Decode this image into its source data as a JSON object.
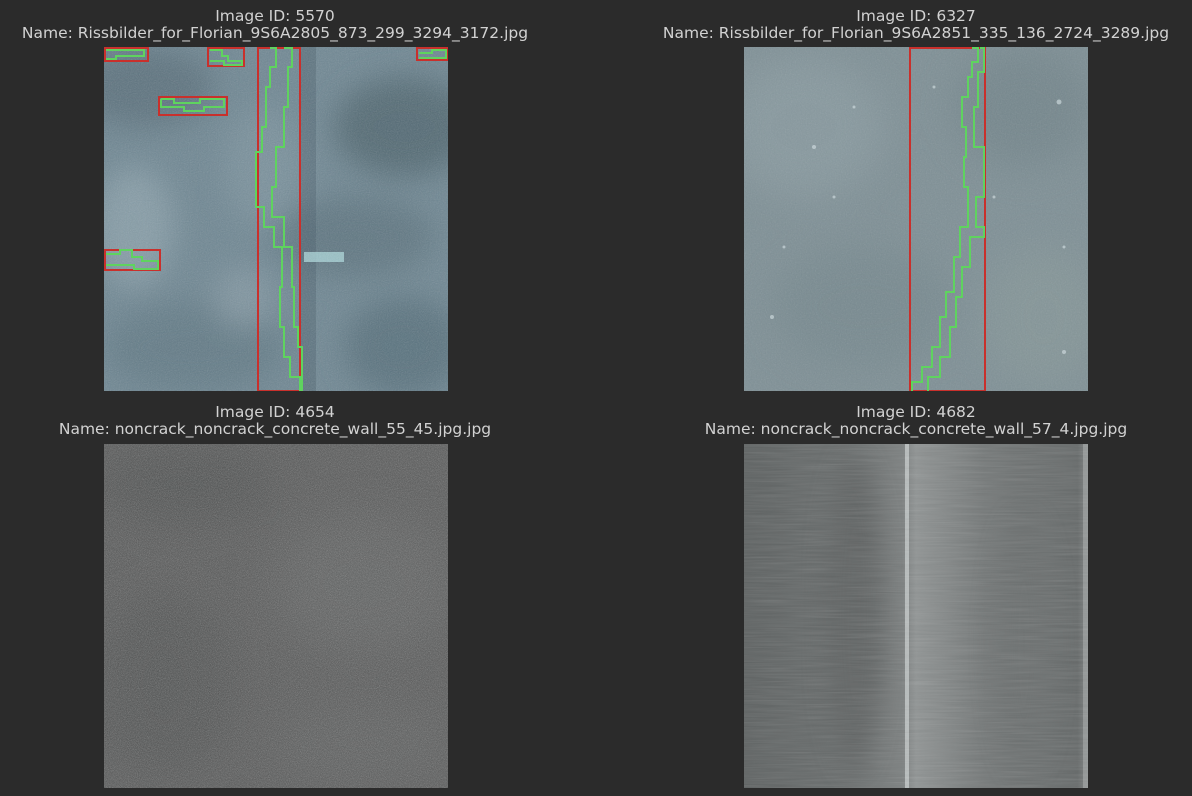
{
  "figure": {
    "panels": [
      {
        "id_line": "Image ID: 5570",
        "name_line": "Name: Rissbilder_for_Florian_9S6A2805_873_299_3294_3172.jpg",
        "subject": "blue-grey concrete with vertical crack",
        "annotated": true
      },
      {
        "id_line": "Image ID: 6327",
        "name_line": "Name: Rissbilder_for_Florian_9S6A2851_335_136_2724_3289.jpg",
        "subject": "grey concrete with vertical crack",
        "annotated": true
      },
      {
        "id_line": "Image ID: 4654",
        "name_line": "Name: noncrack_noncrack_concrete_wall_55_45.jpg.jpg",
        "subject": "dark grey rough concrete wall",
        "annotated": false
      },
      {
        "id_line": "Image ID: 4682",
        "name_line": "Name: noncrack_noncrack_concrete_wall_57_4.jpg.jpg",
        "subject": "grey concrete wall with vertical seam",
        "annotated": false
      }
    ],
    "colors": {
      "background": "#2b2b2b",
      "caption_text": "#d2d2d2",
      "bbox": "#c9302c",
      "mask_outline": "#5fd35f"
    }
  }
}
